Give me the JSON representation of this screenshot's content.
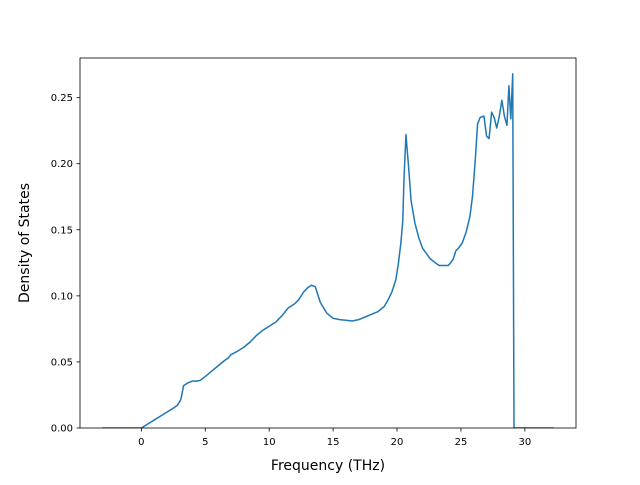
{
  "chart_data": {
    "type": "line",
    "title": "",
    "xlabel": "Frequency (THz)",
    "ylabel": "Density of States",
    "xlim": [
      -4.8,
      34.0
    ],
    "ylim": [
      0.0,
      0.28
    ],
    "xticks": [
      0,
      5,
      10,
      15,
      20,
      25,
      30
    ],
    "yticks": [
      0.0,
      0.05,
      0.1,
      0.15,
      0.2,
      0.25
    ],
    "xtick_labels": [
      "0",
      "5",
      "10",
      "15",
      "20",
      "25",
      "30"
    ],
    "ytick_labels": [
      "0.00",
      "0.05",
      "0.10",
      "0.15",
      "0.20",
      "0.25"
    ],
    "grid": false,
    "legend": "none",
    "series": [
      {
        "color": "#1f77b4",
        "x": [
          -3.0,
          -2.0,
          -1.0,
          0.0,
          0.5,
          1.0,
          1.5,
          2.0,
          2.5,
          2.8,
          3.0,
          3.1,
          3.3,
          3.6,
          4.0,
          4.3,
          4.6,
          5.0,
          5.5,
          6.0,
          6.5,
          6.8,
          7.0,
          7.5,
          8.0,
          8.5,
          9.0,
          9.5,
          10.0,
          10.5,
          11.0,
          11.5,
          12.0,
          12.3,
          12.5,
          12.7,
          13.0,
          13.3,
          13.6,
          14.0,
          14.5,
          15.0,
          15.5,
          16.0,
          16.5,
          17.0,
          17.5,
          18.0,
          18.5,
          19.0,
          19.3,
          19.6,
          19.9,
          20.1,
          20.3,
          20.45,
          20.55,
          20.7,
          20.9,
          21.1,
          21.4,
          21.7,
          22.0,
          22.3,
          22.6,
          23.0,
          23.3,
          23.6,
          24.0,
          24.2,
          24.4,
          24.6,
          24.8,
          25.1,
          25.4,
          25.7,
          25.9,
          26.1,
          26.3,
          26.5,
          26.8,
          27.0,
          27.2,
          27.4,
          27.6,
          27.8,
          28.0,
          28.2,
          28.4,
          28.6,
          28.75,
          28.9,
          29.05,
          29.15,
          29.35,
          29.55,
          31.0,
          32.2
        ],
        "y": [
          0.0,
          0.0,
          0.0,
          0.0,
          0.003,
          0.006,
          0.009,
          0.012,
          0.015,
          0.017,
          0.02,
          0.022,
          0.032,
          0.034,
          0.0355,
          0.0355,
          0.036,
          0.039,
          0.043,
          0.047,
          0.051,
          0.053,
          0.0555,
          0.058,
          0.061,
          0.065,
          0.07,
          0.074,
          0.077,
          0.08,
          0.085,
          0.091,
          0.094,
          0.097,
          0.1,
          0.103,
          0.106,
          0.108,
          0.107,
          0.095,
          0.087,
          0.083,
          0.082,
          0.0815,
          0.081,
          0.082,
          0.084,
          0.086,
          0.088,
          0.092,
          0.097,
          0.103,
          0.112,
          0.124,
          0.14,
          0.157,
          0.19,
          0.222,
          0.198,
          0.172,
          0.155,
          0.144,
          0.136,
          0.132,
          0.128,
          0.125,
          0.123,
          0.123,
          0.123,
          0.125,
          0.128,
          0.134,
          0.136,
          0.14,
          0.148,
          0.16,
          0.175,
          0.2,
          0.23,
          0.235,
          0.236,
          0.221,
          0.219,
          0.239,
          0.235,
          0.227,
          0.236,
          0.248,
          0.236,
          0.229,
          0.259,
          0.234,
          0.268,
          0.0,
          0.0,
          0.0,
          0.0,
          0.0
        ]
      }
    ]
  }
}
